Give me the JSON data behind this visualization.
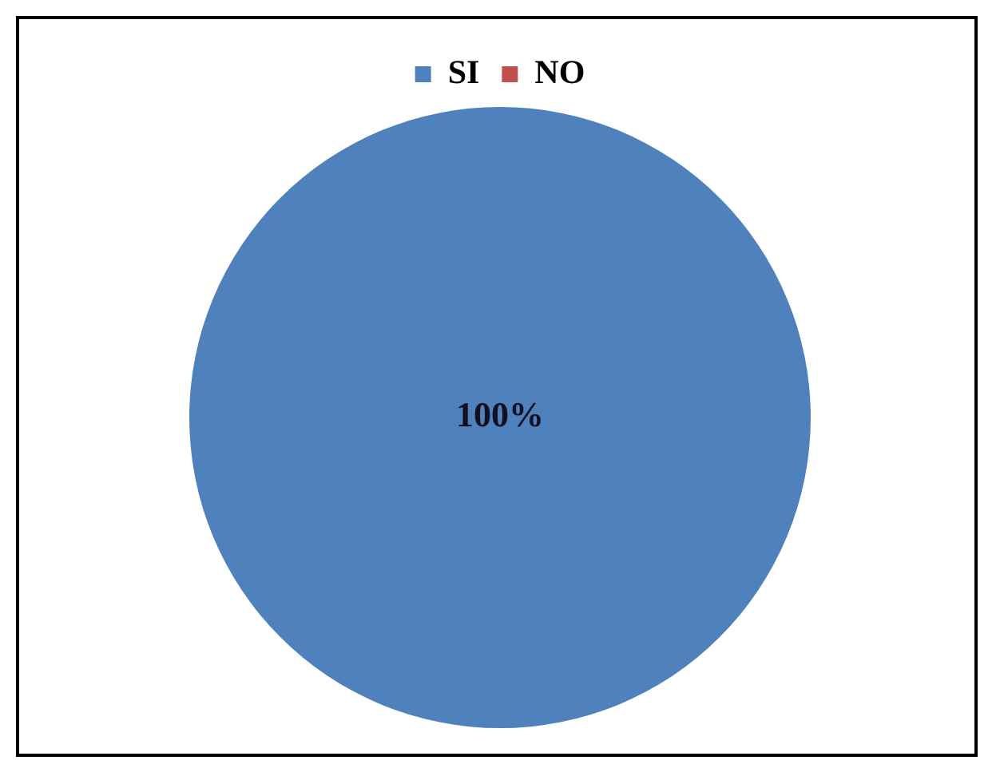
{
  "chart_data": {
    "type": "pie",
    "categories": [
      "SI",
      "NO"
    ],
    "values": [
      100,
      0
    ],
    "colors": [
      "#4f81bd",
      "#c0504d"
    ],
    "value_labels": [
      "100%",
      null
    ],
    "legend": "top"
  }
}
